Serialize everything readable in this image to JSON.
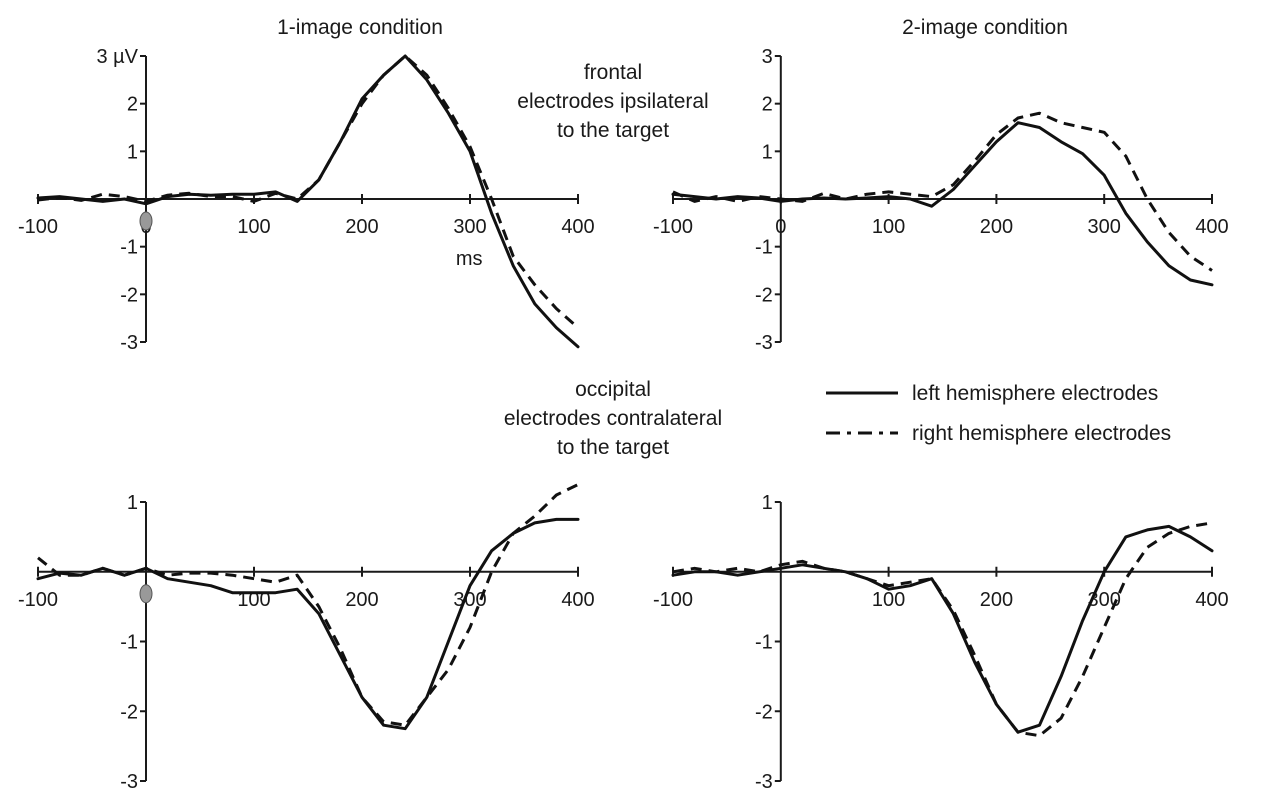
{
  "row_labels": {
    "frontal": [
      "frontal",
      "electrodes ipsilateral",
      "to the target"
    ],
    "occipital": [
      "occipital",
      "electrodes contralateral",
      "to the target"
    ]
  },
  "legend": {
    "solid_label": "left hemisphere electrodes",
    "dashed_label": "right hemisphere electrodes"
  },
  "colors": {
    "lines": "#111111",
    "axes": "#1a1a1a",
    "stimulus_marker": "#999999"
  },
  "chart_data": [
    {
      "type": "line",
      "id": "frontal-1",
      "title": "1-image condition",
      "ylabel": "3 µV",
      "xlabel": "ms",
      "xlim": [
        -100,
        400
      ],
      "ylim": [
        -3,
        3
      ],
      "x_ticks": [
        -100,
        0,
        100,
        200,
        300,
        400
      ],
      "y_ticks": [
        3,
        2,
        1,
        -1,
        -2,
        -3
      ],
      "y_tick_labels": [
        "3 µV",
        "2",
        "1",
        "-1",
        "-2",
        "-3"
      ],
      "series": [
        {
          "style": "solid",
          "x": [
            -100,
            -80,
            -60,
            -40,
            -20,
            0,
            20,
            40,
            60,
            80,
            100,
            120,
            140,
            160,
            180,
            200,
            220,
            240,
            260,
            280,
            300,
            320,
            340,
            360,
            380,
            400
          ],
          "y": [
            0.02,
            0.05,
            0.0,
            -0.05,
            0.0,
            -0.1,
            0.05,
            0.1,
            0.08,
            0.1,
            0.1,
            0.15,
            -0.05,
            0.4,
            1.2,
            2.1,
            2.6,
            3.0,
            2.5,
            1.8,
            1.0,
            -0.3,
            -1.4,
            -2.2,
            -2.7,
            -3.1
          ]
        },
        {
          "style": "dashed",
          "x": [
            -100,
            -80,
            -60,
            -40,
            -20,
            0,
            20,
            40,
            60,
            80,
            100,
            120,
            140,
            160,
            180,
            200,
            220,
            240,
            260,
            280,
            300,
            320,
            340,
            360,
            380,
            400
          ],
          "y": [
            -0.02,
            0.03,
            -0.03,
            0.1,
            0.05,
            -0.05,
            0.08,
            0.12,
            0.05,
            0.05,
            -0.05,
            0.12,
            0.0,
            0.4,
            1.2,
            2.0,
            2.6,
            3.0,
            2.6,
            1.9,
            1.1,
            0.0,
            -1.2,
            -1.8,
            -2.3,
            -2.7
          ]
        }
      ]
    },
    {
      "type": "line",
      "id": "frontal-2",
      "title": "2-image condition",
      "xlim": [
        -100,
        400
      ],
      "ylim": [
        -3,
        3
      ],
      "x_ticks": [
        -100,
        0,
        100,
        200,
        300,
        400
      ],
      "y_ticks": [
        3,
        2,
        1,
        -1,
        -2,
        -3
      ],
      "y_tick_labels": [
        "3",
        "2",
        "1",
        "-1",
        "-2",
        "-3"
      ],
      "series": [
        {
          "style": "solid",
          "x": [
            -100,
            -80,
            -60,
            -40,
            -20,
            0,
            20,
            40,
            60,
            80,
            100,
            120,
            140,
            160,
            180,
            200,
            220,
            240,
            260,
            280,
            300,
            320,
            340,
            360,
            380,
            400
          ],
          "y": [
            0.1,
            0.05,
            0.0,
            0.05,
            0.02,
            -0.05,
            0.0,
            0.02,
            0.0,
            0.02,
            0.05,
            0.0,
            -0.15,
            0.2,
            0.7,
            1.2,
            1.6,
            1.5,
            1.2,
            0.95,
            0.5,
            -0.3,
            -0.9,
            -1.4,
            -1.7,
            -1.8
          ]
        },
        {
          "style": "dashed",
          "x": [
            -100,
            -80,
            -60,
            -40,
            -20,
            0,
            20,
            40,
            60,
            80,
            100,
            120,
            140,
            160,
            180,
            200,
            220,
            240,
            260,
            280,
            300,
            320,
            340,
            360,
            380,
            400
          ],
          "y": [
            0.15,
            -0.05,
            0.05,
            -0.05,
            0.05,
            0.0,
            -0.05,
            0.12,
            0.0,
            0.1,
            0.15,
            0.1,
            0.05,
            0.3,
            0.8,
            1.35,
            1.7,
            1.8,
            1.6,
            1.5,
            1.4,
            0.9,
            0.0,
            -0.7,
            -1.2,
            -1.5
          ]
        }
      ]
    },
    {
      "type": "line",
      "id": "occipital-1",
      "xlim": [
        -100,
        400
      ],
      "ylim": [
        -3,
        1
      ],
      "x_ticks": [
        -100,
        100,
        200,
        300,
        400
      ],
      "y_ticks": [
        1,
        -1,
        -2,
        -3
      ],
      "y_tick_labels": [
        "1",
        "-1",
        "-2",
        "-3"
      ],
      "series": [
        {
          "style": "solid",
          "x": [
            -100,
            -80,
            -60,
            -40,
            -20,
            0,
            20,
            40,
            60,
            80,
            100,
            120,
            140,
            160,
            180,
            200,
            220,
            240,
            260,
            280,
            300,
            320,
            340,
            360,
            380,
            400
          ],
          "y": [
            -0.1,
            -0.02,
            -0.05,
            0.05,
            -0.05,
            0.05,
            -0.1,
            -0.15,
            -0.2,
            -0.3,
            -0.3,
            -0.3,
            -0.25,
            -0.6,
            -1.2,
            -1.8,
            -2.2,
            -2.25,
            -1.8,
            -1.0,
            -0.2,
            0.3,
            0.55,
            0.7,
            0.75,
            0.75
          ]
        },
        {
          "style": "dashed",
          "x": [
            -100,
            -80,
            -60,
            -40,
            -20,
            0,
            20,
            40,
            60,
            80,
            100,
            120,
            140,
            160,
            180,
            200,
            220,
            240,
            260,
            280,
            300,
            320,
            340,
            360,
            380,
            400
          ],
          "y": [
            0.2,
            -0.05,
            -0.05,
            0.05,
            -0.05,
            0.05,
            -0.05,
            -0.02,
            -0.02,
            -0.05,
            -0.1,
            -0.15,
            -0.05,
            -0.5,
            -1.1,
            -1.8,
            -2.15,
            -2.2,
            -1.8,
            -1.4,
            -0.8,
            0.0,
            0.55,
            0.8,
            1.1,
            1.25
          ]
        }
      ]
    },
    {
      "type": "line",
      "id": "occipital-2",
      "xlim": [
        -100,
        400
      ],
      "ylim": [
        -3,
        1
      ],
      "x_ticks": [
        -100,
        100,
        200,
        300,
        400
      ],
      "y_ticks": [
        1,
        -1,
        -2,
        -3
      ],
      "y_tick_labels": [
        "1",
        "-1",
        "-2",
        "-3"
      ],
      "series": [
        {
          "style": "solid",
          "x": [
            -100,
            -80,
            -60,
            -40,
            -20,
            0,
            20,
            40,
            60,
            80,
            100,
            120,
            140,
            160,
            180,
            200,
            220,
            240,
            260,
            280,
            300,
            320,
            340,
            360,
            380,
            400
          ],
          "y": [
            -0.05,
            0.0,
            0.0,
            -0.05,
            0.0,
            0.05,
            0.1,
            0.05,
            0.0,
            -0.1,
            -0.25,
            -0.2,
            -0.1,
            -0.6,
            -1.3,
            -1.9,
            -2.3,
            -2.2,
            -1.5,
            -0.7,
            0.0,
            0.5,
            0.6,
            0.65,
            0.5,
            0.3
          ]
        },
        {
          "style": "dashed",
          "x": [
            -100,
            -80,
            -60,
            -40,
            -20,
            0,
            20,
            40,
            60,
            80,
            100,
            120,
            140,
            160,
            180,
            200,
            220,
            240,
            260,
            280,
            300,
            320,
            340,
            360,
            380,
            400
          ],
          "y": [
            0.0,
            0.05,
            0.0,
            0.05,
            0.0,
            0.1,
            0.15,
            0.05,
            0.0,
            -0.1,
            -0.2,
            -0.15,
            -0.1,
            -0.55,
            -1.2,
            -1.9,
            -2.3,
            -2.35,
            -2.1,
            -1.5,
            -0.8,
            -0.1,
            0.35,
            0.55,
            0.65,
            0.7
          ]
        }
      ]
    }
  ]
}
